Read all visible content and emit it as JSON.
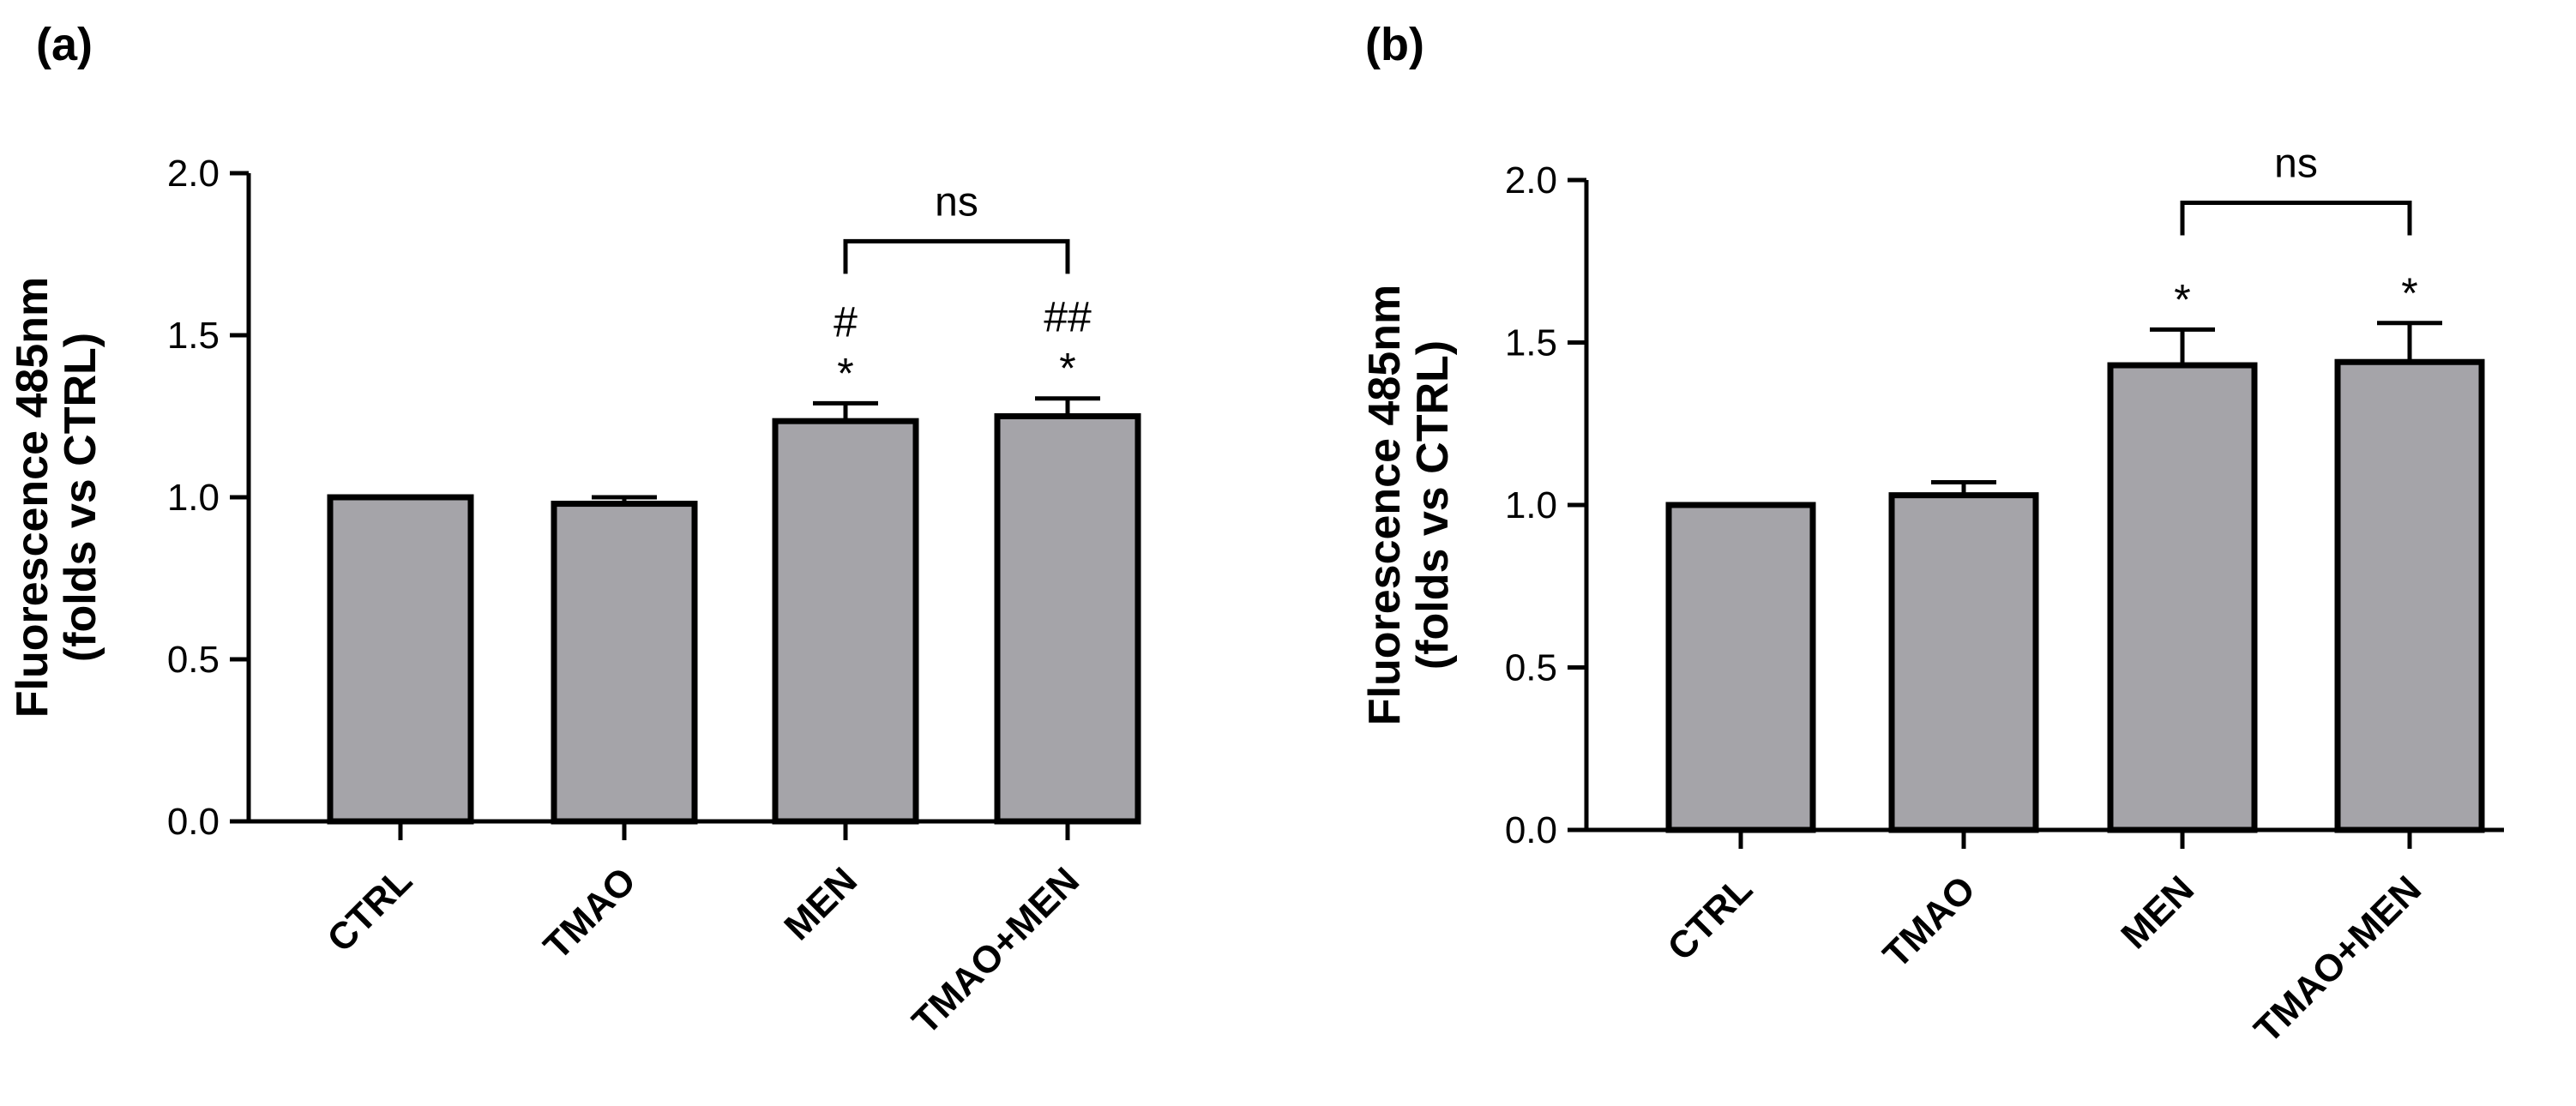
{
  "chart_data": [
    {
      "type": "bar",
      "panel_label": "(a)",
      "ylabel": "Fluorescence 485nm",
      "ylabel_line2": "(folds vs CTRL)",
      "ylim": [
        0,
        2.0
      ],
      "yticks": [
        "0.0",
        "0.5",
        "1.0",
        "1.5",
        "2.0"
      ],
      "categories": [
        "CTRL",
        "TMAO",
        "MEN",
        "TMAO+MEN"
      ],
      "values": [
        1.0,
        0.98,
        1.235,
        1.25
      ],
      "errors": [
        0.0,
        0.02,
        0.055,
        0.055
      ],
      "bar_color": "#a5a4a9",
      "annotations": [
        {
          "category": "MEN",
          "lines": [
            "#",
            "*"
          ]
        },
        {
          "category": "TMAO+MEN",
          "lines": [
            "##",
            "*"
          ]
        }
      ],
      "bracket": {
        "from": "MEN",
        "to": "TMAO+MEN",
        "label": "ns",
        "y": 1.79
      }
    },
    {
      "type": "bar",
      "panel_label": "(b)",
      "ylabel": "Fluorescence 485nm",
      "ylabel_line2": "(folds vs CTRL)",
      "ylim": [
        0,
        2.0
      ],
      "yticks": [
        "0.0",
        "0.5",
        "1.0",
        "1.5",
        "2.0"
      ],
      "categories": [
        "CTRL",
        "TMAO",
        "MEN",
        "TMAO+MEN"
      ],
      "values": [
        1.0,
        1.03,
        1.43,
        1.44
      ],
      "errors": [
        0.0,
        0.04,
        0.11,
        0.12
      ],
      "bar_color": "#a5a4a9",
      "annotations": [
        {
          "category": "MEN",
          "lines": [
            "*"
          ]
        },
        {
          "category": "TMAO+MEN",
          "lines": [
            "*"
          ]
        }
      ],
      "bracket": {
        "from": "MEN",
        "to": "TMAO+MEN",
        "label": "ns",
        "y": 1.93
      }
    }
  ]
}
